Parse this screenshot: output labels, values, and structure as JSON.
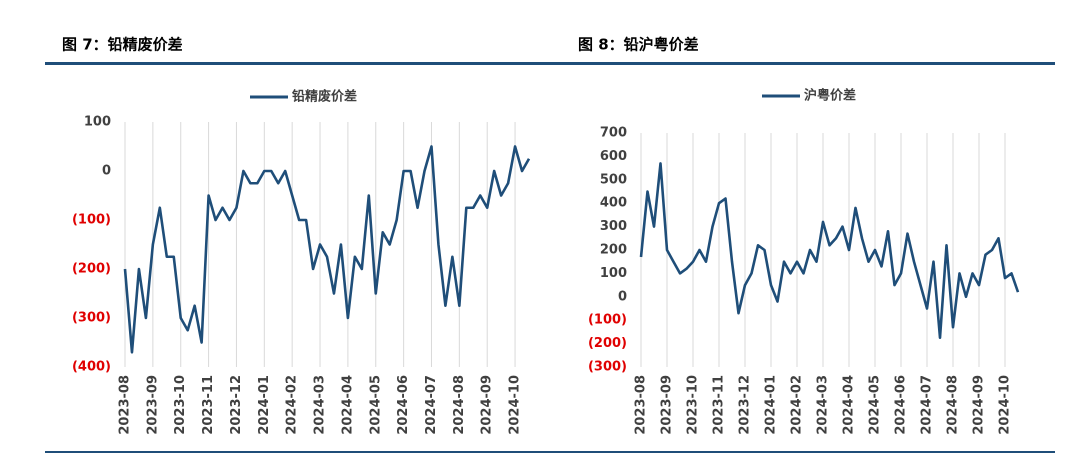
{
  "chart_data": [
    {
      "type": "line",
      "title": "图 7：铅精废价差",
      "categories": [
        "2023-08",
        null,
        null,
        null,
        "2023-09",
        null,
        null,
        null,
        "2023-10",
        null,
        null,
        null,
        "2023-11",
        null,
        null,
        null,
        "2023-12",
        null,
        null,
        null,
        "2024-01",
        null,
        null,
        null,
        "2024-02",
        null,
        null,
        null,
        "2024-03",
        null,
        null,
        null,
        "2024-04",
        null,
        null,
        null,
        "2024-05",
        null,
        null,
        null,
        "2024-06",
        null,
        null,
        null,
        "2024-07",
        null,
        null,
        null,
        "2024-08",
        null,
        null,
        null,
        "2024-09",
        null,
        null,
        null,
        "2024-10",
        null,
        null
      ],
      "series": [
        {
          "name": "铅精废价差",
          "color": "#1f4e79",
          "values": [
            -200,
            -370,
            -200,
            -300,
            -150,
            -75,
            -175,
            -175,
            -300,
            -325,
            -275,
            -350,
            -50,
            -100,
            -75,
            -100,
            -75,
            0,
            -25,
            -25,
            0,
            0,
            -25,
            0,
            -50,
            -100,
            -100,
            -200,
            -150,
            -175,
            -250,
            -150,
            -300,
            -175,
            -200,
            -50,
            -250,
            -125,
            -150,
            -100,
            0,
            0,
            -75,
            0,
            50,
            -150,
            -275,
            -175,
            -275,
            -75,
            -75,
            -50,
            -75,
            0,
            -50,
            -25,
            50,
            0,
            25
          ]
        }
      ],
      "ylim": [
        -400,
        100
      ],
      "yticks": [
        {
          "value": -400,
          "label": "(400)"
        },
        {
          "value": -300,
          "label": "(300)"
        },
        {
          "value": -200,
          "label": "(200)"
        },
        {
          "value": -100,
          "label": "(100)"
        },
        0,
        100
      ],
      "grid": "x",
      "negative_tick_color": "#e00000"
    },
    {
      "type": "line",
      "title": "图 8：铅沪粤价差",
      "categories": [
        "2023-08",
        null,
        null,
        null,
        "2023-09",
        null,
        null,
        null,
        "2023-10",
        null,
        null,
        null,
        "2023-11",
        null,
        null,
        null,
        "2023-12",
        null,
        null,
        null,
        "2024-01",
        null,
        null,
        null,
        "2024-02",
        null,
        null,
        null,
        "2024-03",
        null,
        null,
        null,
        "2024-04",
        null,
        null,
        null,
        "2024-05",
        null,
        null,
        null,
        "2024-06",
        null,
        null,
        null,
        "2024-07",
        null,
        null,
        null,
        "2024-08",
        null,
        null,
        null,
        "2024-09",
        null,
        null,
        null,
        "2024-10",
        null,
        null
      ],
      "series": [
        {
          "name": "沪粤价差",
          "color": "#1f4e79",
          "values": [
            170,
            450,
            300,
            570,
            200,
            150,
            100,
            120,
            150,
            200,
            150,
            300,
            400,
            420,
            150,
            -70,
            50,
            100,
            220,
            200,
            50,
            -20,
            150,
            100,
            150,
            100,
            200,
            150,
            320,
            220,
            250,
            300,
            200,
            380,
            250,
            150,
            200,
            130,
            280,
            50,
            100,
            270,
            150,
            50,
            -50,
            150,
            -175,
            220,
            -130,
            100,
            0,
            100,
            50,
            180,
            200,
            250,
            80,
            100,
            20
          ]
        }
      ],
      "ylim": [
        -300,
        700
      ],
      "yticks": [
        {
          "value": -300,
          "label": "(300)"
        },
        {
          "value": -200,
          "label": "(200)"
        },
        {
          "value": -100,
          "label": "(100)"
        },
        0,
        100,
        200,
        300,
        400,
        500,
        600,
        700
      ],
      "grid": "x",
      "negative_tick_color": "#e00000"
    }
  ]
}
